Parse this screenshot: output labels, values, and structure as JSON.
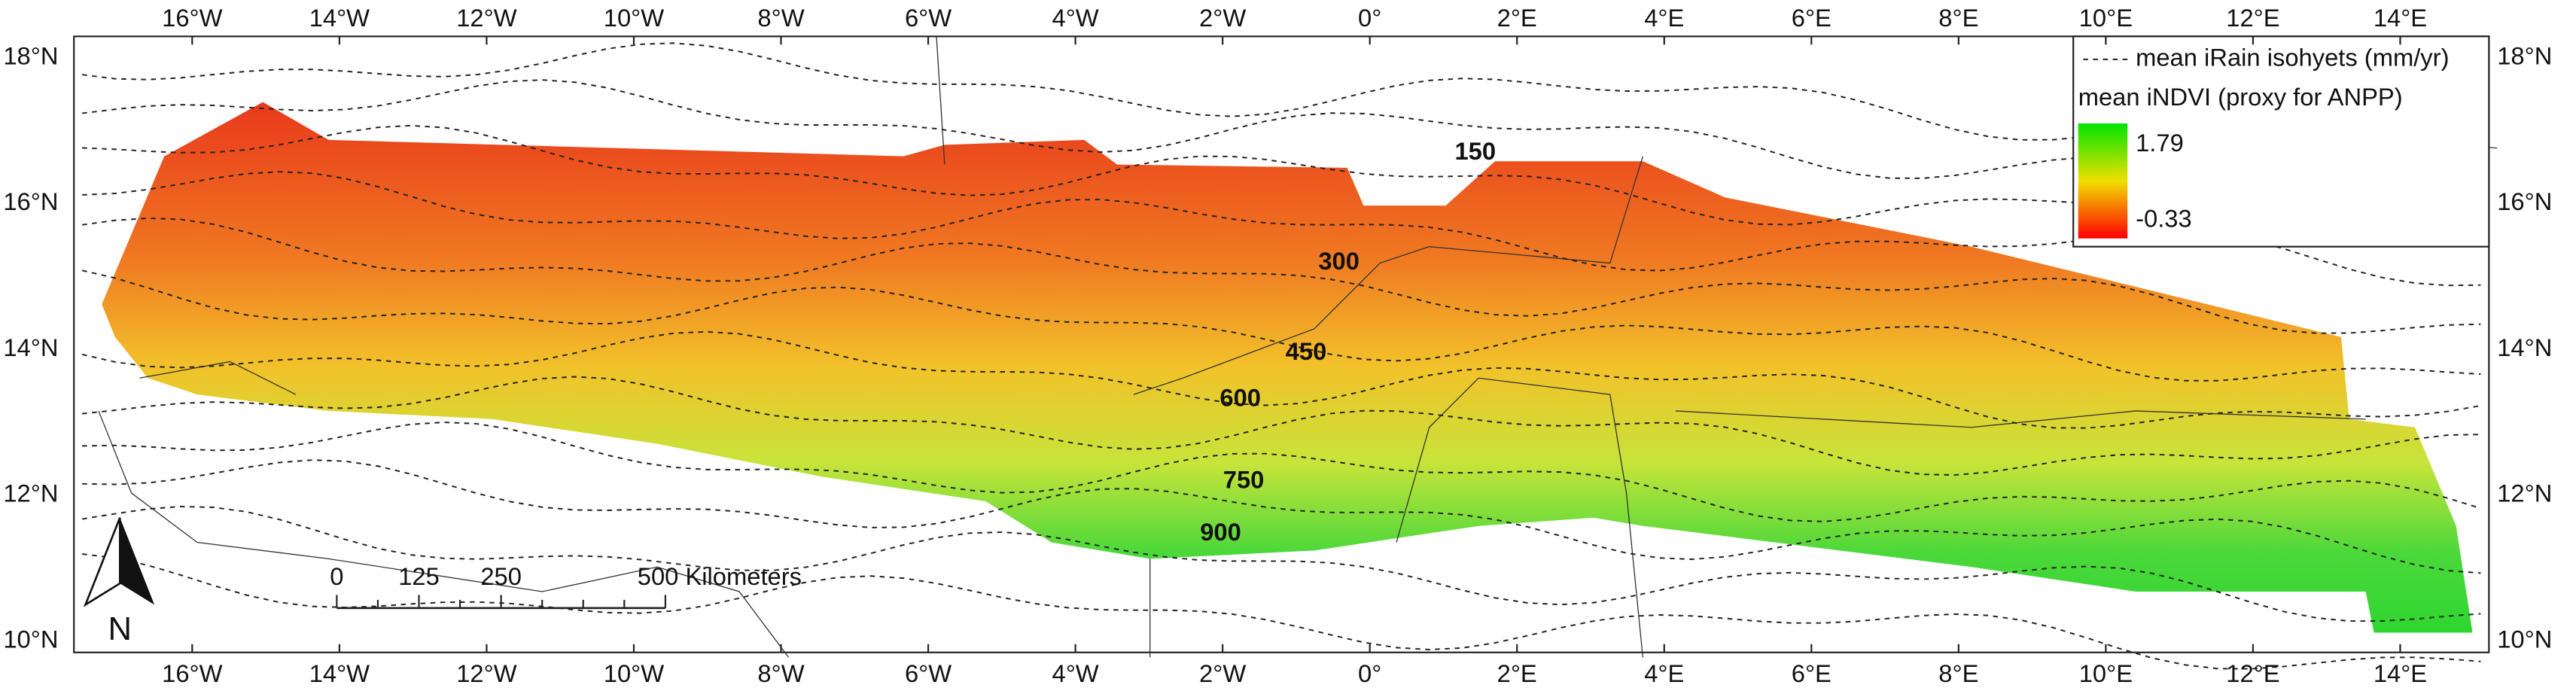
{
  "map": {
    "lon_labels": [
      "16°W",
      "14°W",
      "12°W",
      "10°W",
      "8°W",
      "6°W",
      "4°W",
      "2°W",
      "0°",
      "2°E",
      "4°E",
      "6°E",
      "8°E",
      "10°E",
      "12°E",
      "14°E"
    ],
    "lat_labels": [
      "18°N",
      "16°N",
      "14°N",
      "12°N",
      "10°N"
    ],
    "legend": {
      "isohyets": "mean iRain isohyets (mm/yr)",
      "ndvi": "mean iNDVI (proxy for ANPP)",
      "max": "1.79",
      "min": "-0.33"
    },
    "isohyet_labels": [
      "150",
      "300",
      "450",
      "600",
      "750",
      "900"
    ],
    "scale_bar": [
      "0",
      "125",
      "250",
      "500 Kilometers"
    ],
    "north": "N"
  }
}
